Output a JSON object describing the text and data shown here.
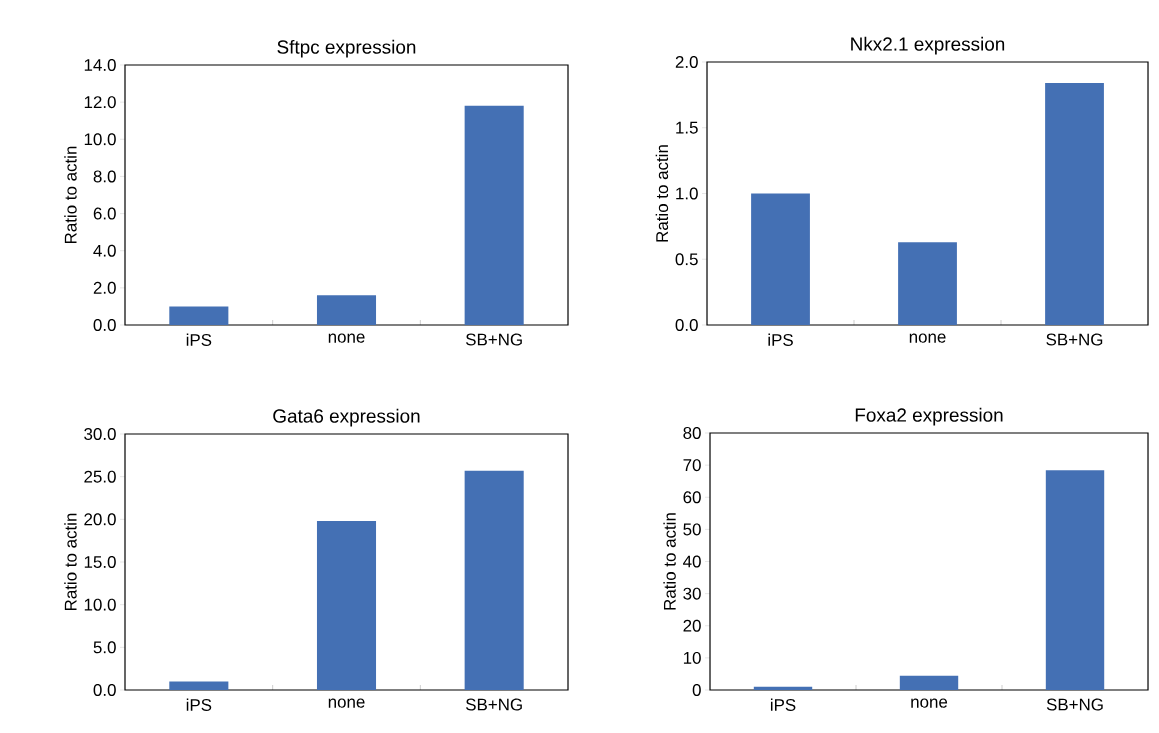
{
  "chart_data": [
    {
      "type": "bar",
      "title": "Sftpc expression",
      "ylabel": "Ratio to actin",
      "categories": [
        "iPS",
        "none",
        "SB+NG"
      ],
      "values": [
        1.0,
        1.6,
        11.8
      ],
      "color": "#4470b4",
      "ylim": [
        0,
        14
      ],
      "yticks": [
        {
          "value": 0,
          "label": "0.0"
        },
        {
          "value": 2,
          "label": "2.0"
        },
        {
          "value": 4,
          "label": "4.0"
        },
        {
          "value": 6,
          "label": "6.0"
        },
        {
          "value": 8,
          "label": "8.0"
        },
        {
          "value": 10,
          "label": "10.0"
        },
        {
          "value": 12,
          "label": "12.0"
        },
        {
          "value": 14,
          "label": "14.0"
        }
      ]
    },
    {
      "type": "bar",
      "title": "Nkx2.1 expression",
      "ylabel": "Ratio to actin",
      "categories": [
        "iPS",
        "none",
        "SB+NG"
      ],
      "values": [
        1.0,
        0.63,
        1.84
      ],
      "color": "#4470b4",
      "ylim": [
        0,
        2
      ],
      "yticks": [
        {
          "value": 0,
          "label": "0.0"
        },
        {
          "value": 0.5,
          "label": "0.5"
        },
        {
          "value": 1,
          "label": "1.0"
        },
        {
          "value": 1.5,
          "label": "1.5"
        },
        {
          "value": 2,
          "label": "2.0"
        }
      ]
    },
    {
      "type": "bar",
      "title": "Gata6 expression",
      "ylabel": "Ratio to actin",
      "categories": [
        "iPS",
        "none",
        "SB+NG"
      ],
      "values": [
        1.0,
        19.8,
        25.7
      ],
      "color": "#4470b4",
      "ylim": [
        0,
        30
      ],
      "yticks": [
        {
          "value": 0,
          "label": "0.0"
        },
        {
          "value": 5,
          "label": "5.0"
        },
        {
          "value": 10,
          "label": "10.0"
        },
        {
          "value": 15,
          "label": "15.0"
        },
        {
          "value": 20,
          "label": "20.0"
        },
        {
          "value": 25,
          "label": "25.0"
        },
        {
          "value": 30,
          "label": "30.0"
        }
      ]
    },
    {
      "type": "bar",
      "title": "Foxa2 expression",
      "ylabel": "Ratio to actin",
      "categories": [
        "iPS",
        "none",
        "SB+NG"
      ],
      "values": [
        1.0,
        4.4,
        68.4
      ],
      "color": "#4470b4",
      "ylim": [
        0,
        80
      ],
      "yticks": [
        0,
        10,
        20,
        30,
        40,
        50,
        60,
        70,
        80
      ]
    }
  ]
}
